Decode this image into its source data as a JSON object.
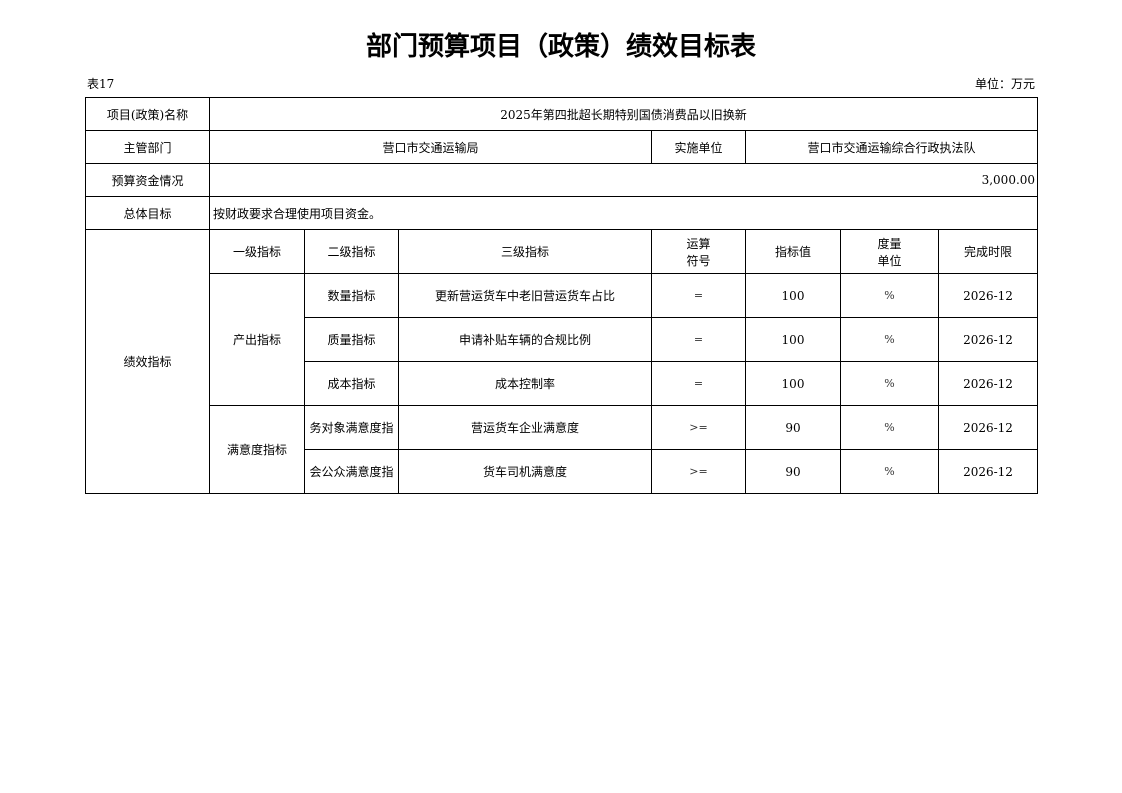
{
  "title": "部门预算项目（政策）绩效目标表",
  "table_no": "表17",
  "unit": "单位：万元",
  "info": {
    "name_label": "项目(政策)名称",
    "name_value": "2025年第四批超长期特别国债消费品以旧换新",
    "dept_label": "主管部门",
    "dept_value": "营口市交通运输局",
    "impl_label": "实施单位",
    "impl_value": "营口市交通运输综合行政执法队",
    "budget_label": "预算资金情况",
    "budget_value": "3,000.00",
    "goal_label": "总体目标",
    "goal_value": "按财政要求合理使用项目资金。"
  },
  "perf": {
    "label": "绩效指标",
    "headers": [
      "一级指标",
      "二级指标",
      "三级指标",
      "运算\n符号",
      "指标值",
      "度量\n单位",
      "完成时限"
    ],
    "header_op": [
      "运算",
      "符号"
    ],
    "header_unit": [
      "度量",
      "单位"
    ],
    "groups": [
      {
        "level1": "产出指标"
      },
      {
        "level1": "满意度指标"
      }
    ],
    "rows": [
      {
        "level2": "数量指标",
        "level3": "更新营运货车中老旧营运货车占比",
        "op": "=",
        "value": "100",
        "unit": "%",
        "deadline": "2026-12"
      },
      {
        "level2": "质量指标",
        "level3": "申请补贴车辆的合规比例",
        "op": "=",
        "value": "100",
        "unit": "%",
        "deadline": "2026-12"
      },
      {
        "level2": "成本指标",
        "level3": "成本控制率",
        "op": "=",
        "value": "100",
        "unit": "%",
        "deadline": "2026-12"
      },
      {
        "level2": "务对象满意度指",
        "level3": "营运货车企业满意度",
        "op": ">=",
        "value": "90",
        "unit": "%",
        "deadline": "2026-12"
      },
      {
        "level2": "会公众满意度指",
        "level3": "货车司机满意度",
        "op": ">=",
        "value": "90",
        "unit": "%",
        "deadline": "2026-12"
      }
    ]
  }
}
